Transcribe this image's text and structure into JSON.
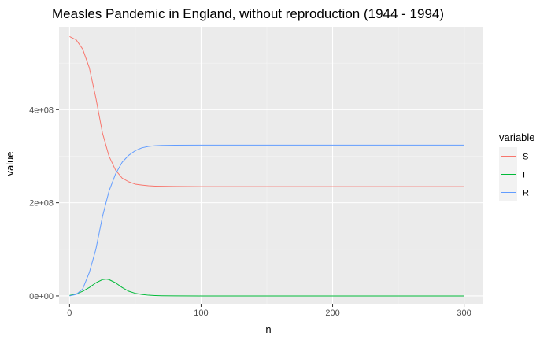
{
  "chart_data": {
    "type": "line",
    "title": "Measles Pandemic in England, without reproduction (1944 - 1994)",
    "xlabel": "n",
    "ylabel": "value",
    "xlim": [
      -8,
      314
    ],
    "ylim": [
      -17000000,
      578000000
    ],
    "x_ticks": [
      0,
      100,
      200,
      300
    ],
    "x_tick_labels": [
      "0",
      "100",
      "200",
      "300"
    ],
    "y_ticks": [
      0,
      200000000,
      400000000
    ],
    "y_tick_labels": [
      "0e+00",
      "2e+08",
      "4e+08"
    ],
    "grid": true,
    "legend": {
      "title": "variable",
      "position": "right"
    },
    "series": [
      {
        "name": "S",
        "color": "#F8766D",
        "x": [
          0,
          5,
          10,
          15,
          20,
          25,
          30,
          35,
          40,
          45,
          50,
          55,
          60,
          65,
          70,
          80,
          90,
          100,
          150,
          200,
          250,
          300
        ],
        "y": [
          557000000,
          550000000,
          530000000,
          490000000,
          425000000,
          350000000,
          300000000,
          270000000,
          253000000,
          245000000,
          240000000,
          238000000,
          236500000,
          235800000,
          235400000,
          235000000,
          234800000,
          234700000,
          234600000,
          234600000,
          234600000,
          234600000
        ]
      },
      {
        "name": "I",
        "color": "#00BA38",
        "x": [
          0,
          5,
          10,
          15,
          20,
          25,
          28,
          30,
          35,
          40,
          45,
          50,
          55,
          60,
          65,
          70,
          80,
          100,
          150,
          200,
          250,
          300
        ],
        "y": [
          1000000,
          4000000,
          10000000,
          18000000,
          28000000,
          35000000,
          36000000,
          35000000,
          28000000,
          18000000,
          10000000,
          5500000,
          3000000,
          1500000,
          800000,
          400000,
          100000,
          0,
          0,
          0,
          0,
          0
        ]
      },
      {
        "name": "R",
        "color": "#619CFF",
        "x": [
          0,
          5,
          10,
          15,
          20,
          25,
          30,
          35,
          40,
          45,
          50,
          55,
          60,
          65,
          70,
          80,
          100,
          150,
          200,
          250,
          300
        ],
        "y": [
          0,
          3000000,
          15000000,
          50000000,
          100000000,
          170000000,
          225000000,
          262000000,
          287000000,
          302000000,
          312000000,
          318000000,
          321000000,
          322500000,
          323200000,
          323600000,
          323800000,
          323900000,
          323900000,
          323900000,
          323900000
        ]
      }
    ]
  }
}
